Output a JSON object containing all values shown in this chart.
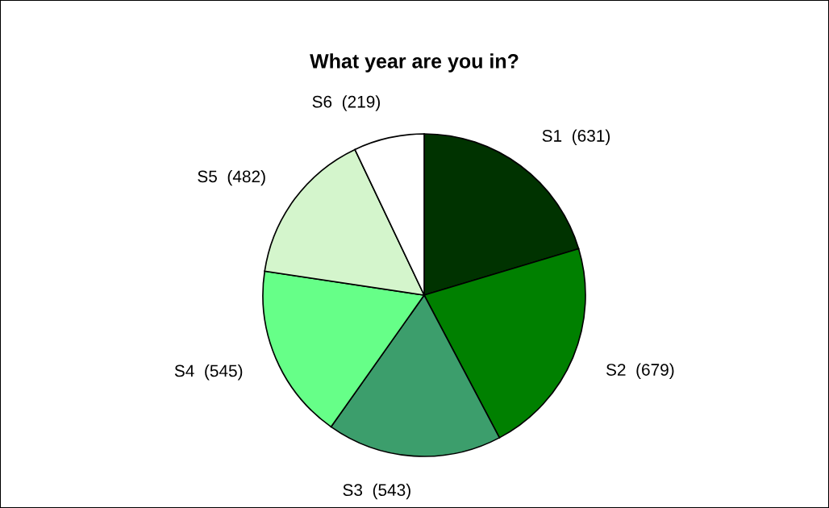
{
  "chart_data": {
    "type": "pie",
    "title": "What year are you in?",
    "categories": [
      "S1",
      "S2",
      "S3",
      "S4",
      "S5",
      "S6"
    ],
    "values": [
      631,
      679,
      543,
      545,
      482,
      219
    ],
    "value_labels": [
      "(631)",
      "(679)",
      "(543)",
      "(545)",
      "(482)",
      "(219)"
    ],
    "colors": [
      "#003300",
      "#008000",
      "#3c9e6c",
      "#66ff88",
      "#d4f5cc",
      "#ffffff"
    ],
    "legend": false
  }
}
